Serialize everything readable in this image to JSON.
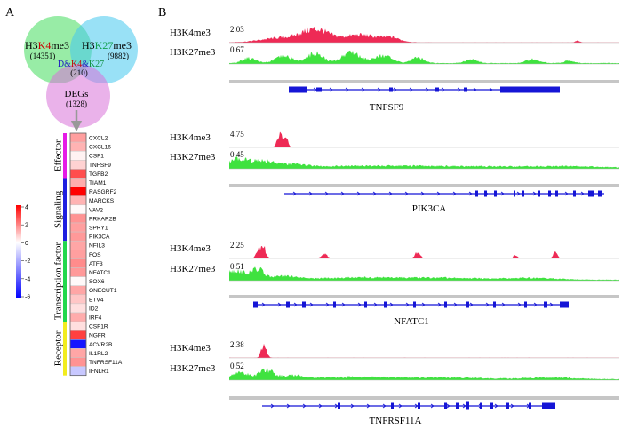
{
  "panelA": {
    "label": "A",
    "venn": {
      "left": {
        "prefix": "H3",
        "mark": "K4",
        "suffix": "me3",
        "count": "(14351)"
      },
      "right": {
        "prefix": "H3",
        "mark": "K27",
        "suffix": "me3",
        "count": "(9882)"
      },
      "center": {
        "d": "D&",
        "k4": "K4",
        "amp": "&",
        "k27": "K27",
        "count": "(210)"
      },
      "bottom": {
        "label": "DEGs",
        "count": "(1328)"
      }
    },
    "colorbar": {
      "ticks": [
        "4",
        "2",
        "0",
        "-2",
        "-4",
        "-6"
      ],
      "max": 4,
      "min": -6
    },
    "groups": [
      {
        "name": "Effector",
        "color": "#e51be6"
      },
      {
        "name": "Signaling",
        "color": "#1e1ee0"
      },
      {
        "name": "Transcription factor",
        "color": "#22d84c"
      },
      {
        "name": "Receptor",
        "color": "#f2ec1e"
      }
    ],
    "genes": [
      {
        "name": "CXCL2",
        "value": 1.5
      },
      {
        "name": "CXCL16",
        "value": 1.2
      },
      {
        "name": "CSF1",
        "value": 0.2
      },
      {
        "name": "TNFSF9",
        "value": 0.7
      },
      {
        "name": "TGFB2",
        "value": 2.8
      },
      {
        "name": "TIAM1",
        "value": 1.3
      },
      {
        "name": "RASGRF2",
        "value": 4.0
      },
      {
        "name": "MARCKS",
        "value": 1.2
      },
      {
        "name": "VAV2",
        "value": 0.1
      },
      {
        "name": "PRKAR2B",
        "value": 1.7
      },
      {
        "name": "SPRY1",
        "value": 1.5
      },
      {
        "name": "PIK3CA",
        "value": 1.6
      },
      {
        "name": "NFIL3",
        "value": 1.4
      },
      {
        "name": "FOS",
        "value": 1.5
      },
      {
        "name": "ATF3",
        "value": 1.8
      },
      {
        "name": "NFATC1",
        "value": 1.6
      },
      {
        "name": "SOX6",
        "value": 0.1
      },
      {
        "name": "ONECUT1",
        "value": 1.4
      },
      {
        "name": "ETV4",
        "value": 0.9
      },
      {
        "name": "ID2",
        "value": 0.5
      },
      {
        "name": "IRF4",
        "value": 1.3
      },
      {
        "name": "CSF1R",
        "value": 0.5
      },
      {
        "name": "NGFR",
        "value": 3.0
      },
      {
        "name": "ACVR2B",
        "value": -5.5
      },
      {
        "name": "IL1RL2",
        "value": 1.4
      },
      {
        "name": "TNFRSF11A",
        "value": 1.7
      },
      {
        "name": "IFNLR1",
        "value": -1.3
      }
    ]
  },
  "panelB": {
    "label": "B",
    "colors": {
      "k4": "#ee2a55",
      "k27": "#3fe23f",
      "gene": "#1515d6"
    },
    "tracks": [
      {
        "gene": "TNFSF9",
        "k4_label": "H3K4me3",
        "k4_max": "2.03",
        "k27_label": "H3K27me3",
        "k27_max": "0.67"
      },
      {
        "gene": "PIK3CA",
        "k4_label": "H3K4me3",
        "k4_max": "4.75",
        "k27_label": "H3K27me3",
        "k27_max": "0.45"
      },
      {
        "gene": "NFATC1",
        "k4_label": "H3K4me3",
        "k4_max": "2.25",
        "k27_label": "H3K27me3",
        "k27_max": "0.51"
      },
      {
        "gene": "TNFRSF11A",
        "k4_label": "H3K4me3",
        "k4_max": "2.38",
        "k27_label": "H3K27me3",
        "k27_max": "0.52"
      }
    ]
  }
}
